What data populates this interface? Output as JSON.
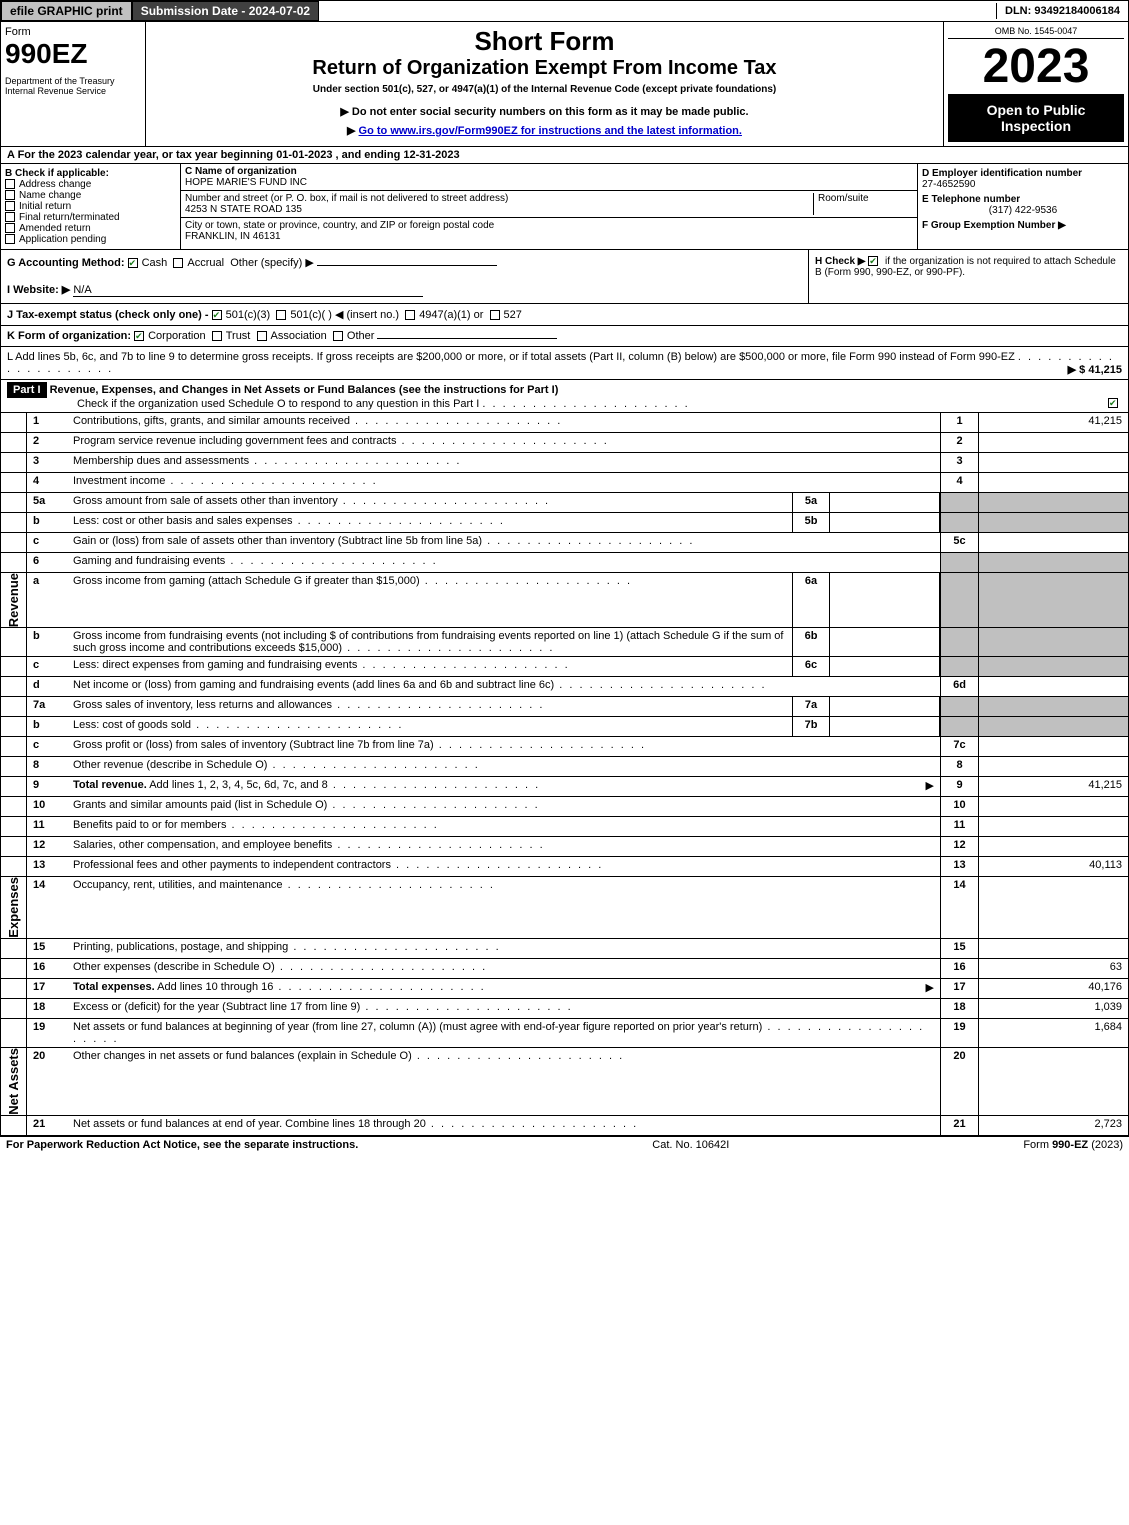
{
  "topbar": {
    "efile": "efile GRAPHIC print",
    "submission": "Submission Date - 2024-07-02",
    "dln": "DLN: 93492184006184"
  },
  "header": {
    "form_label": "Form",
    "form_number": "990EZ",
    "dept": "Department of the Treasury\nInternal Revenue Service",
    "short_form": "Short Form",
    "return_title": "Return of Organization Exempt From Income Tax",
    "under_section": "Under section 501(c), 527, or 4947(a)(1) of the Internal Revenue Code (except private foundations)",
    "no_ssn": "Do not enter social security numbers on this form as it may be made public.",
    "goto": "Go to www.irs.gov/Form990EZ for instructions and the latest information.",
    "omb": "OMB No. 1545-0047",
    "year": "2023",
    "open": "Open to Public Inspection"
  },
  "rowA": "A  For the 2023 calendar year, or tax year beginning 01-01-2023 , and ending 12-31-2023",
  "B": {
    "label": "B  Check if applicable:",
    "items": [
      "Address change",
      "Name change",
      "Initial return",
      "Final return/terminated",
      "Amended return",
      "Application pending"
    ]
  },
  "C": {
    "name_label": "C Name of organization",
    "name": "HOPE MARIE'S FUND INC",
    "street_label": "Number and street (or P. O. box, if mail is not delivered to street address)",
    "room_label": "Room/suite",
    "street": "4253 N STATE ROAD 135",
    "city_label": "City or town, state or province, country, and ZIP or foreign postal code",
    "city": "FRANKLIN, IN  46131"
  },
  "D": {
    "ein_label": "D Employer identification number",
    "ein": "27-4652590",
    "phone_label": "E Telephone number",
    "phone": "(317) 422-9536",
    "group_label": "F Group Exemption Number"
  },
  "G": {
    "label": "G Accounting Method:",
    "cash": "Cash",
    "accrual": "Accrual",
    "other": "Other (specify)"
  },
  "H": {
    "text1": "H  Check ▶",
    "text2": "if the organization is not required to attach Schedule B (Form 990, 990-EZ, or 990-PF)."
  },
  "I": {
    "label": "I Website: ▶",
    "value": "N/A"
  },
  "J": {
    "label": "J Tax-exempt status (check only one) -",
    "opts": [
      "501(c)(3)",
      "501(c)(  ) ◀ (insert no.)",
      "4947(a)(1) or",
      "527"
    ]
  },
  "K": {
    "label": "K Form of organization:",
    "opts": [
      "Corporation",
      "Trust",
      "Association",
      "Other"
    ]
  },
  "L": {
    "text": "L Add lines 5b, 6c, and 7b to line 9 to determine gross receipts. If gross receipts are $200,000 or more, or if total assets (Part II, column (B) below) are $500,000 or more, file Form 990 instead of Form 990-EZ",
    "amount": "▶ $ 41,215"
  },
  "part1": {
    "hdr": "Part I",
    "title": "Revenue, Expenses, and Changes in Net Assets or Fund Balances (see the instructions for Part I)",
    "check_text": "Check if the organization used Schedule O to respond to any question in this Part I"
  },
  "revenue_label": "Revenue",
  "expenses_label": "Expenses",
  "netassets_label": "Net Assets",
  "lines": {
    "1": {
      "n": "1",
      "d": "Contributions, gifts, grants, and similar amounts received",
      "box": "1",
      "val": "41,215"
    },
    "2": {
      "n": "2",
      "d": "Program service revenue including government fees and contracts",
      "box": "2",
      "val": ""
    },
    "3": {
      "n": "3",
      "d": "Membership dues and assessments",
      "box": "3",
      "val": ""
    },
    "4": {
      "n": "4",
      "d": "Investment income",
      "box": "4",
      "val": ""
    },
    "5a": {
      "n": "5a",
      "d": "Gross amount from sale of assets other than inventory",
      "sub": "5a"
    },
    "5b": {
      "n": "b",
      "d": "Less: cost or other basis and sales expenses",
      "sub": "5b"
    },
    "5c": {
      "n": "c",
      "d": "Gain or (loss) from sale of assets other than inventory (Subtract line 5b from line 5a)",
      "box": "5c",
      "val": ""
    },
    "6": {
      "n": "6",
      "d": "Gaming and fundraising events"
    },
    "6a": {
      "n": "a",
      "d": "Gross income from gaming (attach Schedule G if greater than $15,000)",
      "sub": "6a"
    },
    "6b": {
      "n": "b",
      "d": "Gross income from fundraising events (not including $                     of contributions from fundraising events reported on line 1) (attach Schedule G if the sum of such gross income and contributions exceeds $15,000)",
      "sub": "6b"
    },
    "6c": {
      "n": "c",
      "d": "Less: direct expenses from gaming and fundraising events",
      "sub": "6c"
    },
    "6d": {
      "n": "d",
      "d": "Net income or (loss) from gaming and fundraising events (add lines 6a and 6b and subtract line 6c)",
      "box": "6d",
      "val": ""
    },
    "7a": {
      "n": "7a",
      "d": "Gross sales of inventory, less returns and allowances",
      "sub": "7a"
    },
    "7b": {
      "n": "b",
      "d": "Less: cost of goods sold",
      "sub": "7b"
    },
    "7c": {
      "n": "c",
      "d": "Gross profit or (loss) from sales of inventory (Subtract line 7b from line 7a)",
      "box": "7c",
      "val": ""
    },
    "8": {
      "n": "8",
      "d": "Other revenue (describe in Schedule O)",
      "box": "8",
      "val": ""
    },
    "9": {
      "n": "9",
      "d": "Total revenue. Add lines 1, 2, 3, 4, 5c, 6d, 7c, and 8",
      "box": "9",
      "val": "41,215",
      "bold": true,
      "arrow": true
    },
    "10": {
      "n": "10",
      "d": "Grants and similar amounts paid (list in Schedule O)",
      "box": "10",
      "val": ""
    },
    "11": {
      "n": "11",
      "d": "Benefits paid to or for members",
      "box": "11",
      "val": ""
    },
    "12": {
      "n": "12",
      "d": "Salaries, other compensation, and employee benefits",
      "box": "12",
      "val": ""
    },
    "13": {
      "n": "13",
      "d": "Professional fees and other payments to independent contractors",
      "box": "13",
      "val": "40,113"
    },
    "14": {
      "n": "14",
      "d": "Occupancy, rent, utilities, and maintenance",
      "box": "14",
      "val": ""
    },
    "15": {
      "n": "15",
      "d": "Printing, publications, postage, and shipping",
      "box": "15",
      "val": ""
    },
    "16": {
      "n": "16",
      "d": "Other expenses (describe in Schedule O)",
      "box": "16",
      "val": "63"
    },
    "17": {
      "n": "17",
      "d": "Total expenses. Add lines 10 through 16",
      "box": "17",
      "val": "40,176",
      "bold": true,
      "arrow": true
    },
    "18": {
      "n": "18",
      "d": "Excess or (deficit) for the year (Subtract line 17 from line 9)",
      "box": "18",
      "val": "1,039"
    },
    "19": {
      "n": "19",
      "d": "Net assets or fund balances at beginning of year (from line 27, column (A)) (must agree with end-of-year figure reported on prior year's return)",
      "box": "19",
      "val": "1,684"
    },
    "20": {
      "n": "20",
      "d": "Other changes in net assets or fund balances (explain in Schedule O)",
      "box": "20",
      "val": ""
    },
    "21": {
      "n": "21",
      "d": "Net assets or fund balances at end of year. Combine lines 18 through 20",
      "box": "21",
      "val": "2,723"
    }
  },
  "footer": {
    "left": "For Paperwork Reduction Act Notice, see the separate instructions.",
    "mid": "Cat. No. 10642I",
    "right": "Form 990-EZ (2023)"
  },
  "colors": {
    "header_dark": "#404040",
    "gray": "#c0c0c0",
    "check_green": "#1a7a1a"
  }
}
